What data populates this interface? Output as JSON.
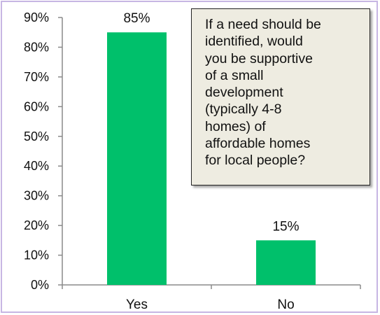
{
  "chart_data": {
    "type": "bar",
    "categories": [
      "Yes",
      "No"
    ],
    "values": [
      85,
      15
    ],
    "data_labels": [
      "85%",
      "15%"
    ],
    "title": "",
    "xlabel": "",
    "ylabel": "",
    "ylim": [
      0,
      90
    ],
    "y_ticks": [
      0,
      10,
      20,
      30,
      40,
      50,
      60,
      70,
      80,
      90
    ],
    "y_tick_labels": [
      "0%",
      "10%",
      "20%",
      "30%",
      "40%",
      "50%",
      "60%",
      "70%",
      "80%",
      "90%"
    ],
    "grid": false,
    "legend": "none",
    "bar_color": "#00c06b",
    "annotation": "If a need should be\nidentified, would\nyou be supportive\nof a small\ndevelopment\n(typically 4-8\nhomes) of\naffordable homes\nfor local people?"
  }
}
